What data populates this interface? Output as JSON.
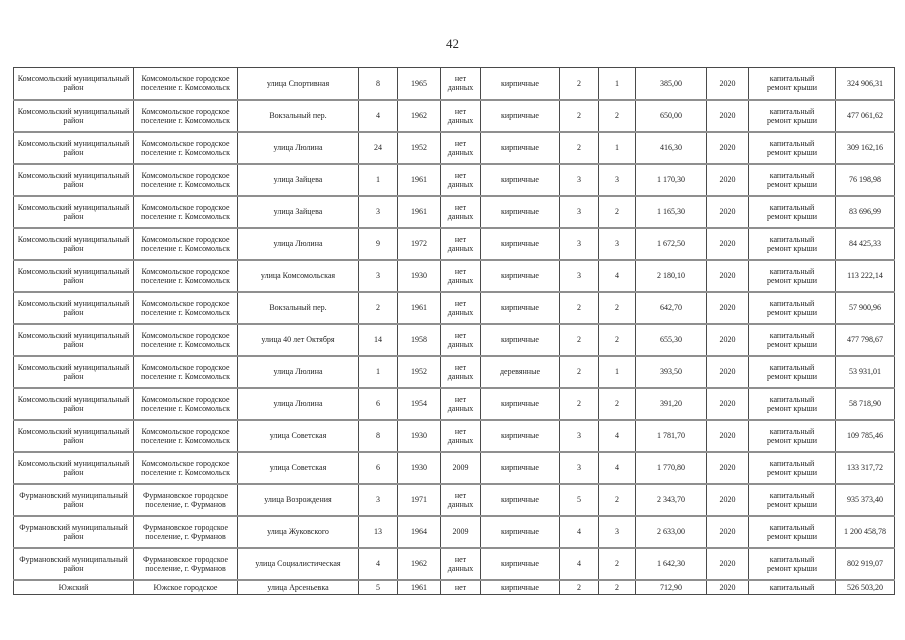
{
  "page_number": "42",
  "table": {
    "rows": [
      [
        "Комсомольский муниципальный район",
        "Комсомольское городское поселение г. Комсомольск",
        "улица Спортивная",
        "8",
        "1965",
        "нет данных",
        "кирпичные",
        "2",
        "1",
        "385,00",
        "2020",
        "капитальный ремонт крыши",
        "324 906,31"
      ],
      [
        "Комсомольский муниципальный район",
        "Комсомольское городское поселение г. Комсомольск",
        "Вокзальный пер.",
        "4",
        "1962",
        "нет данных",
        "кирпичные",
        "2",
        "2",
        "650,00",
        "2020",
        "капитальный ремонт крыши",
        "477 061,62"
      ],
      [
        "Комсомольский муниципальный район",
        "Комсомольское городское поселение г. Комсомольск",
        "улица Люлина",
        "24",
        "1952",
        "нет данных",
        "кирпичные",
        "2",
        "1",
        "416,30",
        "2020",
        "капитальный ремонт крыши",
        "309 162,16"
      ],
      [
        "Комсомольский муниципальный район",
        "Комсомольское городское поселение г. Комсомольск",
        "улица Зайцева",
        "1",
        "1961",
        "нет данных",
        "кирпичные",
        "3",
        "3",
        "1 170,30",
        "2020",
        "капитальный ремонт крыши",
        "76 198,98"
      ],
      [
        "Комсомольский муниципальный район",
        "Комсомольское городское поселение г. Комсомольск",
        "улица Зайцева",
        "3",
        "1961",
        "нет данных",
        "кирпичные",
        "3",
        "2",
        "1 165,30",
        "2020",
        "капитальный ремонт крыши",
        "83 696,99"
      ],
      [
        "Комсомольский муниципальный район",
        "Комсомольское городское поселение г. Комсомольск",
        "улица Люлина",
        "9",
        "1972",
        "нет данных",
        "кирпичные",
        "3",
        "3",
        "1 672,50",
        "2020",
        "капитальный ремонт крыши",
        "84 425,33"
      ],
      [
        "Комсомольский муниципальный район",
        "Комсомольское городское поселение г. Комсомольск",
        "улица Комсомольская",
        "3",
        "1930",
        "нет данных",
        "кирпичные",
        "3",
        "4",
        "2 180,10",
        "2020",
        "капитальный ремонт крыши",
        "113 222,14"
      ],
      [
        "Комсомольский муниципальный район",
        "Комсомольское городское поселение г. Комсомольск",
        "Вокзальный пер.",
        "2",
        "1961",
        "нет данных",
        "кирпичные",
        "2",
        "2",
        "642,70",
        "2020",
        "капитальный ремонт крыши",
        "57 900,96"
      ],
      [
        "Комсомольский муниципальный район",
        "Комсомольское городское поселение г. Комсомольск",
        "улица 40 лет Октября",
        "14",
        "1958",
        "нет данных",
        "кирпичные",
        "2",
        "2",
        "655,30",
        "2020",
        "капитальный ремонт крыши",
        "477 798,67"
      ],
      [
        "Комсомольский муниципальный район",
        "Комсомольское городское поселение г. Комсомольск",
        "улица Люлина",
        "1",
        "1952",
        "нет данных",
        "деревянные",
        "2",
        "1",
        "393,50",
        "2020",
        "капитальный ремонт крыши",
        "53 931,01"
      ],
      [
        "Комсомольский муниципальный район",
        "Комсомольское городское поселение г. Комсомольск",
        "улица Люлина",
        "6",
        "1954",
        "нет данных",
        "кирпичные",
        "2",
        "2",
        "391,20",
        "2020",
        "капитальный ремонт крыши",
        "58 718,90"
      ],
      [
        "Комсомольский муниципальный район",
        "Комсомольское городское поселение г. Комсомольск",
        "улица Советская",
        "8",
        "1930",
        "нет данных",
        "кирпичные",
        "3",
        "4",
        "1 781,70",
        "2020",
        "капитальный ремонт крыши",
        "109 785,46"
      ],
      [
        "Комсомольский муниципальный район",
        "Комсомольское городское поселение г. Комсомольск",
        "улица Советская",
        "6",
        "1930",
        "2009",
        "кирпичные",
        "3",
        "4",
        "1 770,80",
        "2020",
        "капитальный ремонт крыши",
        "133 317,72"
      ],
      [
        "Фурмановский муниципальный район",
        "Фурмановское городское поселение, г. Фурманов",
        "улица Возрождения",
        "3",
        "1971",
        "нет данных",
        "кирпичные",
        "5",
        "2",
        "2 343,70",
        "2020",
        "капитальный ремонт крыши",
        "935 373,40"
      ],
      [
        "Фурмановский муниципальный район",
        "Фурмановское городское поселение, г. Фурманов",
        "улица Жуковского",
        "13",
        "1964",
        "2009",
        "кирпичные",
        "4",
        "3",
        "2 633,00",
        "2020",
        "капитальный ремонт крыши",
        "1 200 458,78"
      ],
      [
        "Фурмановский муниципальный район",
        "Фурмановское городское поселение, г. Фурманов",
        "улица Социалистическая",
        "4",
        "1962",
        "нет данных",
        "кирпичные",
        "4",
        "2",
        "1 642,30",
        "2020",
        "капитальный ремонт крыши",
        "802 919,07"
      ],
      [
        "Южский",
        "Южское городское",
        "улица Арсеньевка",
        "5",
        "1961",
        "нет",
        "кирпичные",
        "2",
        "2",
        "712,90",
        "2020",
        "капитальный",
        "526 503,20"
      ]
    ]
  }
}
